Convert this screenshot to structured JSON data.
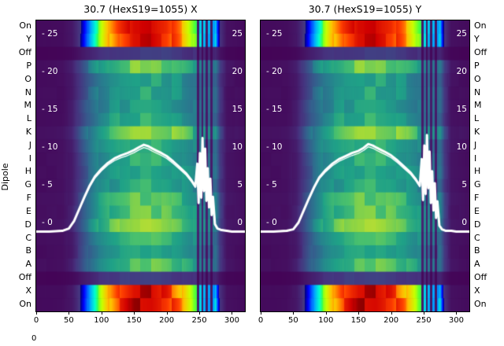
{
  "figure": {
    "left_axis_label": "Dipole",
    "row_labels": [
      "On",
      "Y",
      "Off",
      "P",
      "O",
      "N",
      "M",
      "L",
      "K",
      "J",
      "I",
      "H",
      "G",
      "F",
      "E",
      "D",
      "C",
      "B",
      "A",
      "Off",
      "X",
      "On"
    ],
    "bottom_partial_tick": "0",
    "background": "#ffffff",
    "overlay_line_color": "#ffffff"
  },
  "chart_data": [
    {
      "type": "heatmap",
      "title": "30.7 (HexS19=1055) X",
      "x_range": [
        0,
        320
      ],
      "x_ticks": [
        0,
        50,
        100,
        150,
        200,
        250,
        300
      ],
      "inner_value_ticks": [
        25,
        20,
        15,
        10,
        5,
        0
      ],
      "inner_tick_labels_left": [
        "- 25",
        "- 20",
        "- 15",
        "- 10",
        "- 5",
        "- 0"
      ],
      "inner_tick_labels_right": [
        "25",
        "20",
        "15",
        "10",
        "5",
        "0"
      ],
      "rows": [
        "On",
        "Y",
        "Off",
        "P",
        "O",
        "N",
        "M",
        "L",
        "K",
        "J",
        "I",
        "H",
        "G",
        "F",
        "E",
        "D",
        "C",
        "B",
        "A",
        "Off",
        "X",
        "On"
      ],
      "row_kinds": [
        "band",
        "band",
        "off",
        "body",
        "body",
        "body",
        "body",
        "body",
        "body",
        "body",
        "body",
        "body",
        "body",
        "body",
        "body",
        "body",
        "body",
        "body",
        "body",
        "off",
        "band",
        "band"
      ],
      "colormap_body": "viridis",
      "colormap_bands": "jet",
      "stripe_region": [
        246,
        274
      ],
      "intensity_profile": {
        "x": [
          0,
          40,
          55,
          65,
          75,
          85,
          95,
          110,
          130,
          150,
          175,
          200,
          220,
          235,
          246,
          274,
          282,
          292,
          320
        ],
        "v": [
          0.05,
          0.06,
          0.12,
          0.25,
          0.4,
          0.55,
          0.68,
          0.8,
          0.9,
          0.96,
          0.97,
          0.93,
          0.85,
          0.75,
          0.68,
          0.6,
          0.25,
          0.08,
          0.05
        ]
      },
      "overlay_line": {
        "color": "#ffffff",
        "x": [
          0,
          20,
          40,
          50,
          58,
          66,
          74,
          82,
          90,
          100,
          110,
          120,
          130,
          140,
          150,
          158,
          165,
          172,
          178,
          185,
          192,
          200,
          210,
          220,
          230,
          238,
          244,
          247,
          249,
          251,
          253,
          255,
          257,
          259,
          261,
          263,
          265,
          267,
          269,
          271,
          274,
          278,
          284,
          292,
          300,
          310,
          320
        ],
        "y": [
          -1.2,
          -1.2,
          -1.1,
          -0.8,
          0.2,
          1.8,
          3.4,
          4.9,
          6.1,
          7.1,
          7.9,
          8.5,
          8.9,
          9.2,
          9.6,
          10.0,
          10.3,
          10.1,
          9.8,
          9.5,
          9.2,
          8.8,
          8.1,
          7.3,
          6.5,
          5.6,
          4.8,
          7.8,
          2.6,
          9.2,
          3.3,
          11.2,
          4.2,
          9.8,
          2.9,
          7.2,
          2.0,
          5.8,
          1.0,
          3.4,
          -0.2,
          -0.8,
          -1.0,
          -1.1,
          -1.2,
          -1.2,
          -1.2
        ]
      }
    },
    {
      "type": "heatmap",
      "title": "30.7 (HexS19=1055) Y",
      "x_range": [
        0,
        320
      ],
      "x_ticks": [
        0,
        50,
        100,
        150,
        200,
        250,
        300
      ],
      "inner_value_ticks": [
        25,
        20,
        15,
        10,
        5,
        0
      ],
      "inner_tick_labels_left": [
        "- 25",
        "- 20",
        "- 15",
        "- 10",
        "- 5",
        "- 0"
      ],
      "inner_tick_labels_right": [
        "25",
        "20",
        "15",
        "10",
        "5",
        "0"
      ],
      "rows": [
        "On",
        "Y",
        "Off",
        "P",
        "O",
        "N",
        "M",
        "L",
        "K",
        "J",
        "I",
        "H",
        "G",
        "F",
        "E",
        "D",
        "C",
        "B",
        "A",
        "Off",
        "X",
        "On"
      ],
      "row_kinds": [
        "band",
        "band",
        "off",
        "body",
        "body",
        "body",
        "body",
        "body",
        "body",
        "body",
        "body",
        "body",
        "body",
        "body",
        "body",
        "body",
        "body",
        "body",
        "body",
        "off",
        "band",
        "band"
      ],
      "colormap_body": "viridis",
      "colormap_bands": "jet",
      "stripe_region": [
        246,
        274
      ],
      "intensity_profile": {
        "x": [
          0,
          40,
          55,
          65,
          75,
          85,
          95,
          110,
          130,
          150,
          175,
          200,
          220,
          235,
          246,
          274,
          282,
          292,
          320
        ],
        "v": [
          0.05,
          0.06,
          0.12,
          0.25,
          0.4,
          0.55,
          0.68,
          0.8,
          0.9,
          0.96,
          0.97,
          0.93,
          0.85,
          0.75,
          0.68,
          0.6,
          0.25,
          0.08,
          0.05
        ]
      },
      "overlay_line": {
        "color": "#ffffff",
        "x": [
          0,
          20,
          40,
          50,
          58,
          66,
          74,
          82,
          90,
          100,
          110,
          120,
          130,
          140,
          150,
          158,
          165,
          172,
          178,
          185,
          192,
          200,
          210,
          220,
          230,
          238,
          244,
          247,
          249,
          251,
          253,
          255,
          257,
          259,
          261,
          263,
          265,
          267,
          269,
          271,
          274,
          278,
          284,
          292,
          300,
          310,
          320
        ],
        "y": [
          -1.2,
          -1.2,
          -1.1,
          -0.9,
          0.0,
          1.6,
          3.2,
          4.7,
          6.0,
          7.0,
          7.8,
          8.4,
          8.8,
          9.2,
          9.5,
          9.9,
          10.4,
          10.2,
          9.9,
          9.6,
          9.3,
          8.9,
          8.2,
          7.4,
          6.6,
          5.7,
          4.9,
          8.4,
          3.0,
          10.2,
          3.8,
          11.6,
          4.6,
          9.4,
          2.6,
          6.8,
          1.6,
          5.2,
          0.6,
          2.8,
          -0.4,
          -0.9,
          -1.1,
          -1.1,
          -1.2,
          -1.2,
          -1.2
        ]
      }
    }
  ]
}
